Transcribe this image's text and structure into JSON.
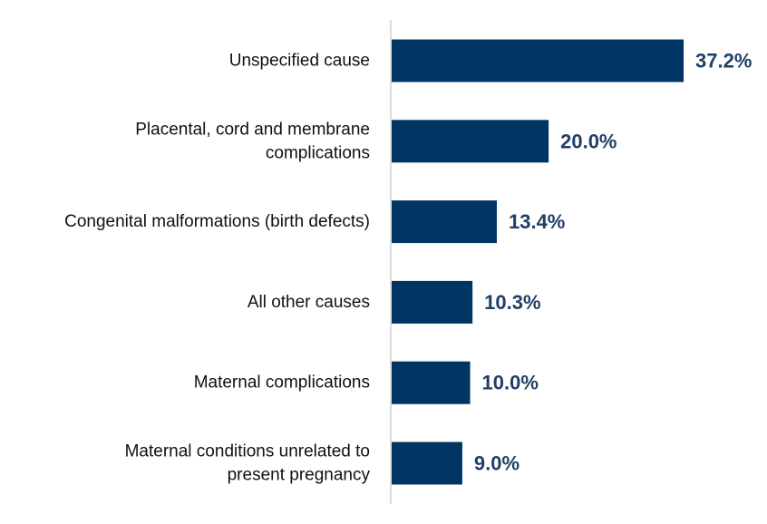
{
  "colors": {
    "bar": "#003462",
    "value_label": "#1f3f66",
    "axis": "#d0d0d0"
  },
  "chart_data": {
    "type": "bar",
    "orientation": "horizontal",
    "title": "",
    "xlabel": "",
    "ylabel": "",
    "categories": [
      [
        "Unspecified cause"
      ],
      [
        "Placental, cord and membrane",
        "complications"
      ],
      [
        "Congenital malformations (birth defects)"
      ],
      [
        "All other causes"
      ],
      [
        "Maternal complications"
      ],
      [
        "Maternal conditions unrelated to",
        "present pregnancy"
      ]
    ],
    "values": [
      37.2,
      20.0,
      13.4,
      10.3,
      10.0,
      9.0
    ],
    "value_labels": [
      "37.2%",
      "20.0%",
      "13.4%",
      "10.3%",
      "10.0%",
      "9.0%"
    ],
    "xlim": [
      0,
      37.2
    ],
    "grid": false,
    "legend": "none"
  }
}
